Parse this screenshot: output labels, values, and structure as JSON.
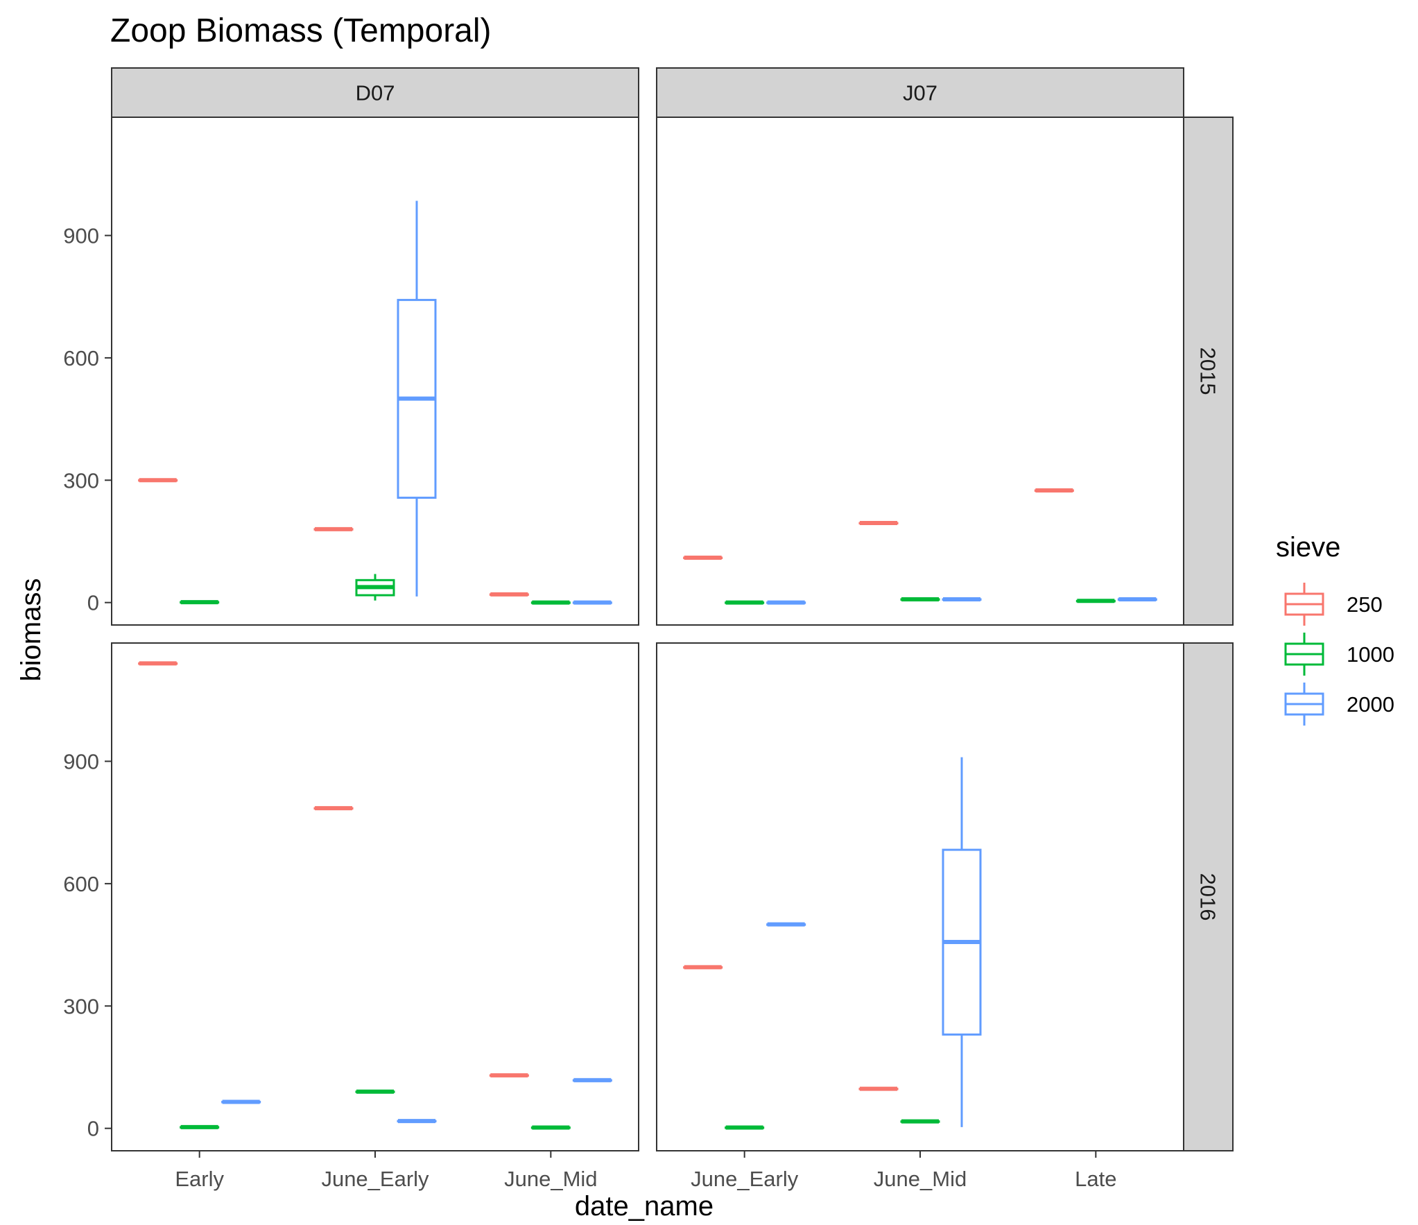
{
  "chart_data": {
    "type": "boxplot",
    "title": "Zoop Biomass (Temporal)",
    "xlabel": "date_name",
    "ylabel": "biomass",
    "y_ticks": [
      0,
      300,
      600,
      900
    ],
    "ylim": [
      -55,
      1190
    ],
    "grid": false,
    "legend": {
      "title": "sieve",
      "position": "right",
      "entries": [
        {
          "label": "250",
          "color": "#F8766D"
        },
        {
          "label": "1000",
          "color": "#00BA38"
        },
        {
          "label": "2000",
          "color": "#619CFF"
        }
      ]
    },
    "facet_columns": [
      "D07",
      "J07"
    ],
    "facet_rows": [
      "2015",
      "2016"
    ],
    "panels": [
      {
        "column": "D07",
        "row": "2015",
        "categories": [
          "Early",
          "June_Early",
          "June_Mid"
        ],
        "boxes": [
          {
            "category": "Early",
            "sieve": "250",
            "min": 300,
            "q1": 300,
            "median": 300,
            "q3": 300,
            "max": 300
          },
          {
            "category": "Early",
            "sieve": "1000",
            "min": 1,
            "q1": 1,
            "median": 1,
            "q3": 1,
            "max": 1
          },
          {
            "category": "June_Early",
            "sieve": "250",
            "min": 180,
            "q1": 180,
            "median": 180,
            "q3": 180,
            "max": 180
          },
          {
            "category": "June_Early",
            "sieve": "1000",
            "min": 5,
            "q1": 18,
            "median": 38,
            "q3": 55,
            "max": 70
          },
          {
            "category": "June_Early",
            "sieve": "2000",
            "min": 15,
            "q1": 257,
            "median": 500,
            "q3": 742,
            "max": 985
          },
          {
            "category": "June_Mid",
            "sieve": "250",
            "min": 20,
            "q1": 20,
            "median": 20,
            "q3": 20,
            "max": 20
          },
          {
            "category": "June_Mid",
            "sieve": "1000",
            "min": 0,
            "q1": 0,
            "median": 0,
            "q3": 0,
            "max": 0
          },
          {
            "category": "June_Mid",
            "sieve": "2000",
            "min": 0,
            "q1": 0,
            "median": 0,
            "q3": 0,
            "max": 0
          }
        ]
      },
      {
        "column": "J07",
        "row": "2015",
        "categories": [
          "June_Early",
          "June_Mid",
          "Late"
        ],
        "boxes": [
          {
            "category": "June_Early",
            "sieve": "250",
            "min": 110,
            "q1": 110,
            "median": 110,
            "q3": 110,
            "max": 110
          },
          {
            "category": "June_Early",
            "sieve": "1000",
            "min": 0,
            "q1": 0,
            "median": 0,
            "q3": 0,
            "max": 0
          },
          {
            "category": "June_Early",
            "sieve": "2000",
            "min": 0,
            "q1": 0,
            "median": 0,
            "q3": 0,
            "max": 0
          },
          {
            "category": "June_Mid",
            "sieve": "250",
            "min": 195,
            "q1": 195,
            "median": 195,
            "q3": 195,
            "max": 195
          },
          {
            "category": "June_Mid",
            "sieve": "1000",
            "min": 8,
            "q1": 8,
            "median": 8,
            "q3": 8,
            "max": 8
          },
          {
            "category": "June_Mid",
            "sieve": "2000",
            "min": 8,
            "q1": 8,
            "median": 8,
            "q3": 8,
            "max": 8
          },
          {
            "category": "Late",
            "sieve": "250",
            "min": 275,
            "q1": 275,
            "median": 275,
            "q3": 275,
            "max": 275
          },
          {
            "category": "Late",
            "sieve": "1000",
            "min": 4,
            "q1": 4,
            "median": 4,
            "q3": 4,
            "max": 4
          },
          {
            "category": "Late",
            "sieve": "2000",
            "min": 8,
            "q1": 8,
            "median": 8,
            "q3": 8,
            "max": 8
          }
        ]
      },
      {
        "column": "D07",
        "row": "2016",
        "categories": [
          "Early",
          "June_Early",
          "June_Mid"
        ],
        "boxes": [
          {
            "category": "Early",
            "sieve": "250",
            "min": 1140,
            "q1": 1140,
            "median": 1140,
            "q3": 1140,
            "max": 1140
          },
          {
            "category": "Early",
            "sieve": "1000",
            "min": 3,
            "q1": 3,
            "median": 3,
            "q3": 3,
            "max": 3
          },
          {
            "category": "Early",
            "sieve": "2000",
            "min": 65,
            "q1": 65,
            "median": 65,
            "q3": 65,
            "max": 65
          },
          {
            "category": "June_Early",
            "sieve": "250",
            "min": 785,
            "q1": 785,
            "median": 785,
            "q3": 785,
            "max": 785
          },
          {
            "category": "June_Early",
            "sieve": "1000",
            "min": 90,
            "q1": 90,
            "median": 90,
            "q3": 90,
            "max": 90
          },
          {
            "category": "June_Early",
            "sieve": "2000",
            "min": 18,
            "q1": 18,
            "median": 18,
            "q3": 18,
            "max": 18
          },
          {
            "category": "June_Mid",
            "sieve": "250",
            "min": 130,
            "q1": 130,
            "median": 130,
            "q3": 130,
            "max": 130
          },
          {
            "category": "June_Mid",
            "sieve": "1000",
            "min": 2,
            "q1": 2,
            "median": 2,
            "q3": 2,
            "max": 2
          },
          {
            "category": "June_Mid",
            "sieve": "2000",
            "min": 118,
            "q1": 118,
            "median": 118,
            "q3": 118,
            "max": 118
          }
        ]
      },
      {
        "column": "J07",
        "row": "2016",
        "categories": [
          "June_Early",
          "June_Mid",
          "Late"
        ],
        "boxes": [
          {
            "category": "June_Early",
            "sieve": "250",
            "min": 395,
            "q1": 395,
            "median": 395,
            "q3": 395,
            "max": 395
          },
          {
            "category": "June_Early",
            "sieve": "1000",
            "min": 2,
            "q1": 2,
            "median": 2,
            "q3": 2,
            "max": 2
          },
          {
            "category": "June_Early",
            "sieve": "2000",
            "min": 500,
            "q1": 500,
            "median": 500,
            "q3": 500,
            "max": 500
          },
          {
            "category": "June_Mid",
            "sieve": "250",
            "min": 97,
            "q1": 97,
            "median": 97,
            "q3": 97,
            "max": 97
          },
          {
            "category": "June_Mid",
            "sieve": "1000",
            "min": 17,
            "q1": 17,
            "median": 17,
            "q3": 17,
            "max": 17
          },
          {
            "category": "June_Mid",
            "sieve": "2000",
            "min": 3,
            "q1": 230,
            "median": 457,
            "q3": 683,
            "max": 910
          }
        ]
      }
    ]
  }
}
